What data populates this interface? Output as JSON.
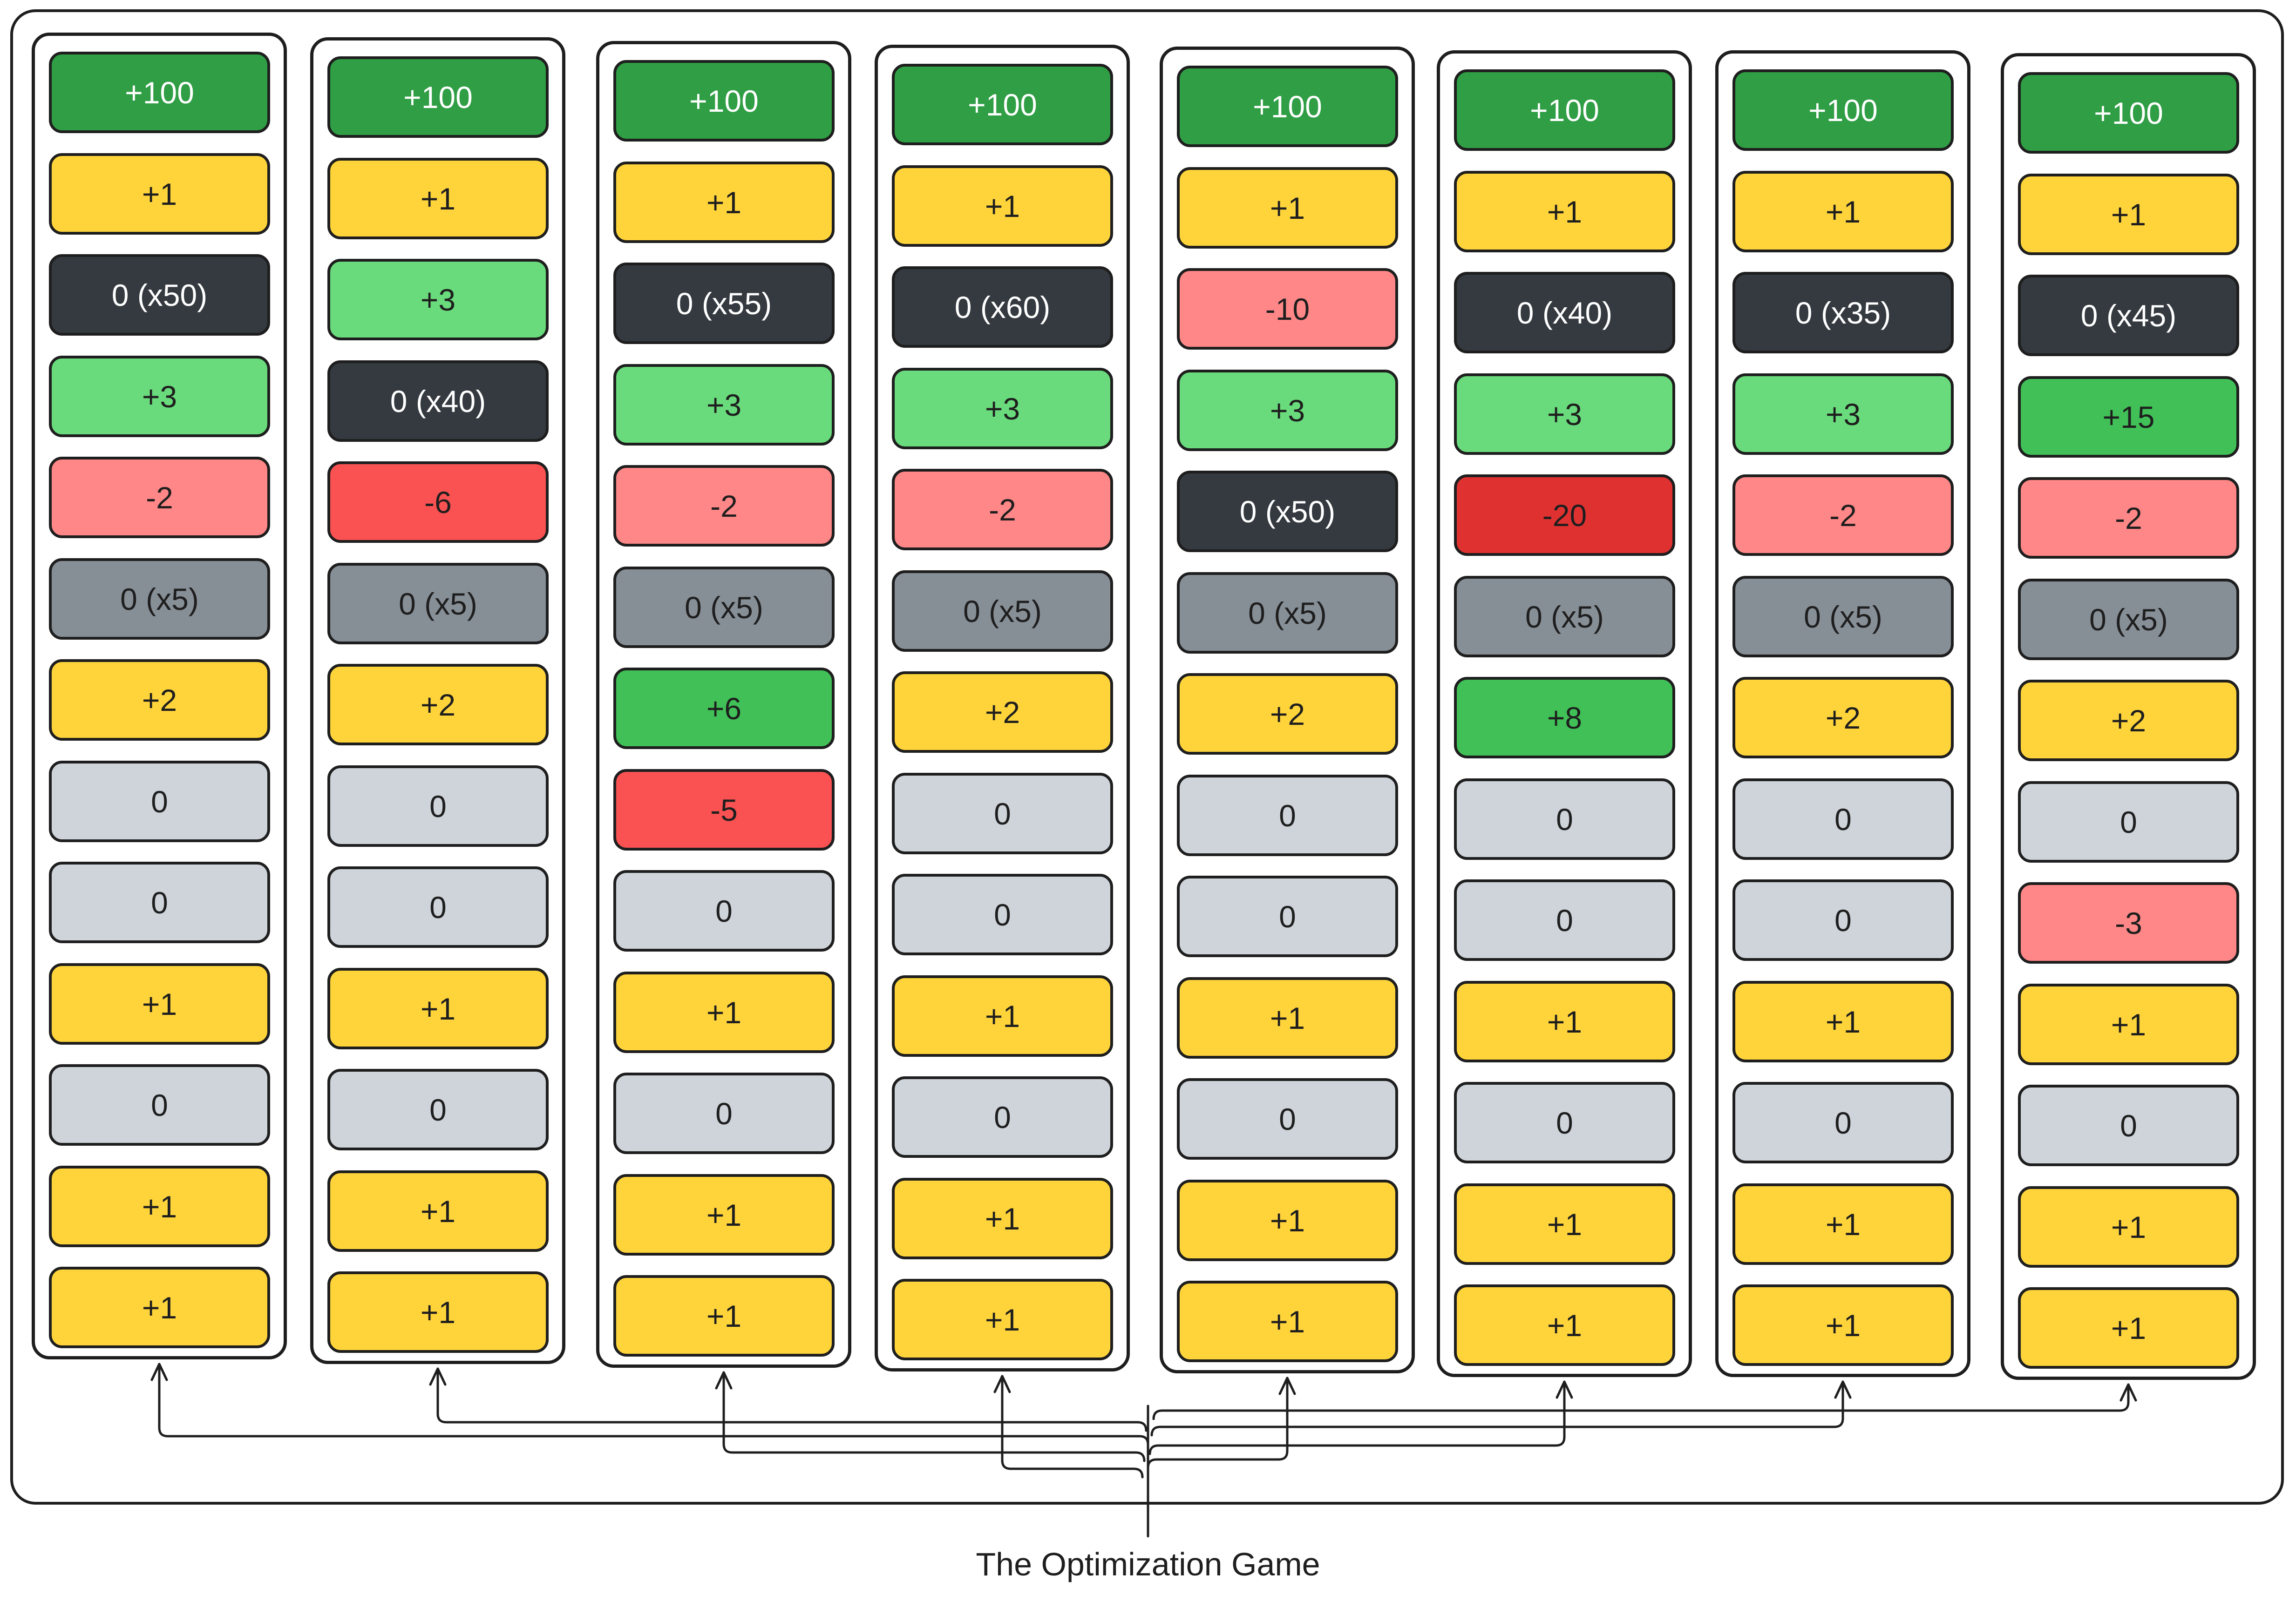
{
  "caption": "The Optimization Game",
  "colors": {
    "dark_green": "#2f9e44",
    "green": "#40c057",
    "light_green": "#69db7c",
    "yellow": "#ffd43b",
    "pink": "#ff8787",
    "red": "#fa5252",
    "dark_red": "#e03131",
    "charcoal": "#343a40",
    "gray": "#868e96",
    "light_gray": "#ced4da"
  },
  "columns": [
    {
      "name": "column-1",
      "cells": [
        {
          "label": "+100",
          "color": "dark_green"
        },
        {
          "label": "+1",
          "color": "yellow"
        },
        {
          "label": "0 (x50)",
          "color": "charcoal"
        },
        {
          "label": "+3",
          "color": "light_green"
        },
        {
          "label": "-2",
          "color": "pink"
        },
        {
          "label": "0 (x5)",
          "color": "gray"
        },
        {
          "label": "+2",
          "color": "yellow"
        },
        {
          "label": "0",
          "color": "light_gray"
        },
        {
          "label": "0",
          "color": "light_gray"
        },
        {
          "label": "+1",
          "color": "yellow"
        },
        {
          "label": "0",
          "color": "light_gray"
        },
        {
          "label": "+1",
          "color": "yellow"
        },
        {
          "label": "+1",
          "color": "yellow"
        }
      ]
    },
    {
      "name": "column-2",
      "cells": [
        {
          "label": "+100",
          "color": "dark_green"
        },
        {
          "label": "+1",
          "color": "yellow"
        },
        {
          "label": "+3",
          "color": "light_green"
        },
        {
          "label": "0 (x40)",
          "color": "charcoal"
        },
        {
          "label": "-6",
          "color": "red"
        },
        {
          "label": "0 (x5)",
          "color": "gray"
        },
        {
          "label": "+2",
          "color": "yellow"
        },
        {
          "label": "0",
          "color": "light_gray"
        },
        {
          "label": "0",
          "color": "light_gray"
        },
        {
          "label": "+1",
          "color": "yellow"
        },
        {
          "label": "0",
          "color": "light_gray"
        },
        {
          "label": "+1",
          "color": "yellow"
        },
        {
          "label": "+1",
          "color": "yellow"
        }
      ]
    },
    {
      "name": "column-3",
      "cells": [
        {
          "label": "+100",
          "color": "dark_green"
        },
        {
          "label": "+1",
          "color": "yellow"
        },
        {
          "label": "0 (x55)",
          "color": "charcoal"
        },
        {
          "label": "+3",
          "color": "light_green"
        },
        {
          "label": "-2",
          "color": "pink"
        },
        {
          "label": "0 (x5)",
          "color": "gray"
        },
        {
          "label": "+6",
          "color": "green"
        },
        {
          "label": "-5",
          "color": "red"
        },
        {
          "label": "0",
          "color": "light_gray"
        },
        {
          "label": "+1",
          "color": "yellow"
        },
        {
          "label": "0",
          "color": "light_gray"
        },
        {
          "label": "+1",
          "color": "yellow"
        },
        {
          "label": "+1",
          "color": "yellow"
        }
      ]
    },
    {
      "name": "column-4",
      "cells": [
        {
          "label": "+100",
          "color": "dark_green"
        },
        {
          "label": "+1",
          "color": "yellow"
        },
        {
          "label": "0 (x60)",
          "color": "charcoal"
        },
        {
          "label": "+3",
          "color": "light_green"
        },
        {
          "label": "-2",
          "color": "pink"
        },
        {
          "label": "0 (x5)",
          "color": "gray"
        },
        {
          "label": "+2",
          "color": "yellow"
        },
        {
          "label": "0",
          "color": "light_gray"
        },
        {
          "label": "0",
          "color": "light_gray"
        },
        {
          "label": "+1",
          "color": "yellow"
        },
        {
          "label": "0",
          "color": "light_gray"
        },
        {
          "label": "+1",
          "color": "yellow"
        },
        {
          "label": "+1",
          "color": "yellow"
        }
      ]
    },
    {
      "name": "column-5",
      "cells": [
        {
          "label": "+100",
          "color": "dark_green"
        },
        {
          "label": "+1",
          "color": "yellow"
        },
        {
          "label": "-10",
          "color": "pink"
        },
        {
          "label": "+3",
          "color": "light_green"
        },
        {
          "label": "0 (x50)",
          "color": "charcoal"
        },
        {
          "label": "0 (x5)",
          "color": "gray"
        },
        {
          "label": "+2",
          "color": "yellow"
        },
        {
          "label": "0",
          "color": "light_gray"
        },
        {
          "label": "0",
          "color": "light_gray"
        },
        {
          "label": "+1",
          "color": "yellow"
        },
        {
          "label": "0",
          "color": "light_gray"
        },
        {
          "label": "+1",
          "color": "yellow"
        },
        {
          "label": "+1",
          "color": "yellow"
        }
      ]
    },
    {
      "name": "column-6",
      "cells": [
        {
          "label": "+100",
          "color": "dark_green"
        },
        {
          "label": "+1",
          "color": "yellow"
        },
        {
          "label": "0 (x40)",
          "color": "charcoal"
        },
        {
          "label": "+3",
          "color": "light_green"
        },
        {
          "label": "-20",
          "color": "dark_red"
        },
        {
          "label": "0 (x5)",
          "color": "gray"
        },
        {
          "label": "+8",
          "color": "green"
        },
        {
          "label": "0",
          "color": "light_gray"
        },
        {
          "label": "0",
          "color": "light_gray"
        },
        {
          "label": "+1",
          "color": "yellow"
        },
        {
          "label": "0",
          "color": "light_gray"
        },
        {
          "label": "+1",
          "color": "yellow"
        },
        {
          "label": "+1",
          "color": "yellow"
        }
      ]
    },
    {
      "name": "column-7",
      "cells": [
        {
          "label": "+100",
          "color": "dark_green"
        },
        {
          "label": "+1",
          "color": "yellow"
        },
        {
          "label": "0 (x35)",
          "color": "charcoal"
        },
        {
          "label": "+3",
          "color": "light_green"
        },
        {
          "label": "-2",
          "color": "pink"
        },
        {
          "label": "0 (x5)",
          "color": "gray"
        },
        {
          "label": "+2",
          "color": "yellow"
        },
        {
          "label": "0",
          "color": "light_gray"
        },
        {
          "label": "0",
          "color": "light_gray"
        },
        {
          "label": "+1",
          "color": "yellow"
        },
        {
          "label": "0",
          "color": "light_gray"
        },
        {
          "label": "+1",
          "color": "yellow"
        },
        {
          "label": "+1",
          "color": "yellow"
        }
      ]
    },
    {
      "name": "column-8",
      "cells": [
        {
          "label": "+100",
          "color": "dark_green"
        },
        {
          "label": "+1",
          "color": "yellow"
        },
        {
          "label": "0 (x45)",
          "color": "charcoal"
        },
        {
          "label": "+15",
          "color": "green"
        },
        {
          "label": "-2",
          "color": "pink"
        },
        {
          "label": "0 (x5)",
          "color": "gray"
        },
        {
          "label": "+2",
          "color": "yellow"
        },
        {
          "label": "0",
          "color": "light_gray"
        },
        {
          "label": "-3",
          "color": "pink"
        },
        {
          "label": "+1",
          "color": "yellow"
        },
        {
          "label": "0",
          "color": "light_gray"
        },
        {
          "label": "+1",
          "color": "yellow"
        },
        {
          "label": "+1",
          "color": "yellow"
        }
      ]
    }
  ]
}
